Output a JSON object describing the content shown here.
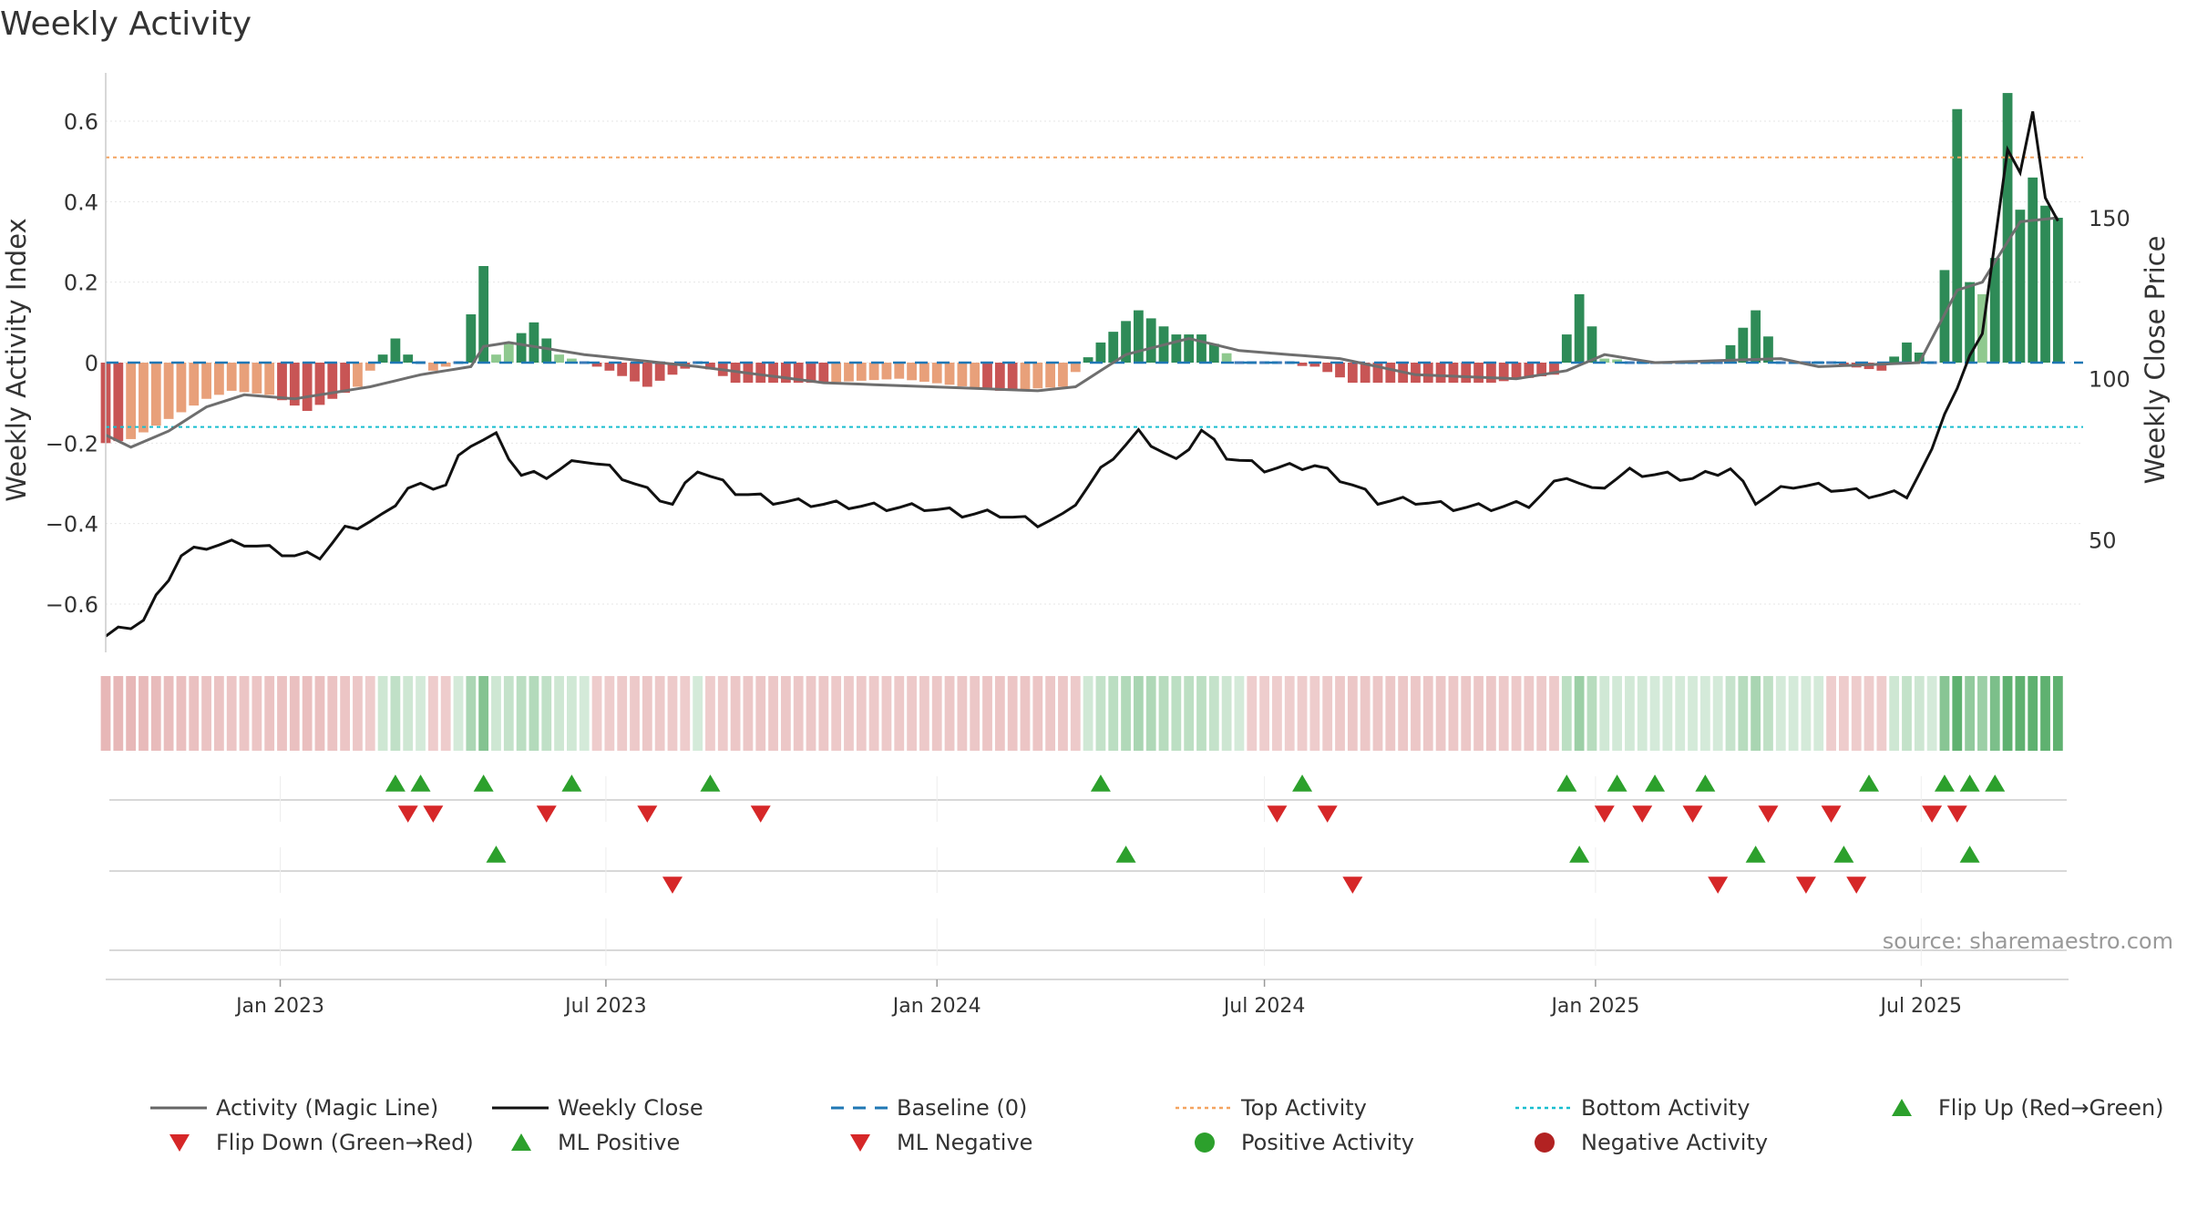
{
  "chart_data": {
    "type": "bar",
    "title": "Weekly Activity",
    "ylabel_left": "Weekly Activity Index",
    "ylabel_right": "Weekly Close Price",
    "source": "source: sharemaestro.com",
    "left_axis": {
      "ylim": [
        -0.72,
        0.72
      ],
      "ticks": [
        -0.6,
        -0.4,
        -0.2,
        0,
        0.2,
        0.4,
        0.6
      ],
      "tick_labels": [
        "−0.6",
        "−0.4",
        "−0.2",
        "0",
        "0.2",
        "0.4",
        "0.6"
      ]
    },
    "right_axis": {
      "ylim": [
        15,
        195
      ],
      "ticks": [
        50,
        100,
        150
      ],
      "tick_labels": [
        "50",
        "100",
        "150"
      ]
    },
    "x_start": "2022-09-26",
    "x_end": "2025-09-29",
    "date_ticks": [
      {
        "date": "2023-01-01",
        "label": "Jan 2023"
      },
      {
        "date": "2023-07-01",
        "label": "Jul 2023"
      },
      {
        "date": "2024-01-01",
        "label": "Jan 2024"
      },
      {
        "date": "2024-07-01",
        "label": "Jul 2024"
      },
      {
        "date": "2025-01-01",
        "label": "Jan 2025"
      },
      {
        "date": "2025-07-01",
        "label": "Jul 2025"
      }
    ],
    "top_activity": 0.51,
    "bottom_activity": -0.16,
    "weekly_activity_knots": [
      [
        "2022-09-26",
        -0.2
      ],
      [
        "2022-10-10",
        -0.19
      ],
      [
        "2022-10-31",
        -0.14
      ],
      [
        "2022-11-21",
        -0.09
      ],
      [
        "2022-12-05",
        -0.07
      ],
      [
        "2022-12-26",
        -0.08
      ],
      [
        "2023-01-16",
        -0.12
      ],
      [
        "2023-02-13",
        -0.06
      ],
      [
        "2023-03-06",
        0.06
      ],
      [
        "2023-03-13",
        0.02
      ],
      [
        "2023-03-27",
        -0.02
      ],
      [
        "2023-04-10",
        0.0
      ],
      [
        "2023-04-24",
        0.24
      ],
      [
        "2023-05-01",
        0.02
      ],
      [
        "2023-05-22",
        0.1
      ],
      [
        "2023-06-05",
        0.02
      ],
      [
        "2023-06-19",
        0.0
      ],
      [
        "2023-07-03",
        -0.02
      ],
      [
        "2023-07-24",
        -0.06
      ],
      [
        "2023-08-21",
        0.0
      ],
      [
        "2023-09-11",
        -0.05
      ],
      [
        "2023-10-30",
        -0.05
      ],
      [
        "2023-12-11",
        -0.04
      ],
      [
        "2024-02-05",
        -0.07
      ],
      [
        "2024-03-11",
        -0.06
      ],
      [
        "2024-04-01",
        0.05
      ],
      [
        "2024-04-22",
        0.13
      ],
      [
        "2024-05-13",
        0.07
      ],
      [
        "2024-05-27",
        0.07
      ],
      [
        "2024-06-17",
        0.0
      ],
      [
        "2024-07-29",
        -0.01
      ],
      [
        "2024-08-19",
        -0.05
      ],
      [
        "2024-09-16",
        -0.05
      ],
      [
        "2024-11-04",
        -0.05
      ],
      [
        "2024-12-09",
        -0.03
      ],
      [
        "2024-12-23",
        0.17
      ],
      [
        "2025-01-06",
        0.01
      ],
      [
        "2025-02-10",
        0.0
      ],
      [
        "2025-03-10",
        0.0
      ],
      [
        "2025-03-31",
        0.13
      ],
      [
        "2025-04-14",
        0.0
      ],
      [
        "2025-05-05",
        0.0
      ],
      [
        "2025-06-09",
        -0.02
      ],
      [
        "2025-06-23",
        0.05
      ],
      [
        "2025-07-07",
        0.0
      ],
      [
        "2025-07-14",
        0.23
      ],
      [
        "2025-07-21",
        0.63
      ],
      [
        "2025-07-28",
        0.2
      ],
      [
        "2025-08-04",
        0.17
      ],
      [
        "2025-08-11",
        0.26
      ],
      [
        "2025-08-18",
        0.67
      ],
      [
        "2025-08-25",
        0.38
      ],
      [
        "2025-09-01",
        0.46
      ],
      [
        "2025-09-08",
        0.39
      ],
      [
        "2025-09-15",
        0.36
      ]
    ],
    "magic_line_knots": [
      [
        "2022-09-26",
        -0.18
      ],
      [
        "2022-10-10",
        -0.21
      ],
      [
        "2022-10-31",
        -0.17
      ],
      [
        "2022-11-21",
        -0.11
      ],
      [
        "2022-12-12",
        -0.08
      ],
      [
        "2023-01-09",
        -0.09
      ],
      [
        "2023-02-20",
        -0.06
      ],
      [
        "2023-03-20",
        -0.03
      ],
      [
        "2023-04-17",
        -0.01
      ],
      [
        "2023-04-24",
        0.04
      ],
      [
        "2023-05-08",
        0.05
      ],
      [
        "2023-06-19",
        0.02
      ],
      [
        "2023-08-21",
        -0.01
      ],
      [
        "2023-10-30",
        -0.05
      ],
      [
        "2024-02-26",
        -0.07
      ],
      [
        "2024-03-18",
        -0.06
      ],
      [
        "2024-04-15",
        0.02
      ],
      [
        "2024-05-20",
        0.06
      ],
      [
        "2024-06-17",
        0.03
      ],
      [
        "2024-08-12",
        0.01
      ],
      [
        "2024-09-23",
        -0.03
      ],
      [
        "2024-11-18",
        -0.04
      ],
      [
        "2024-12-16",
        -0.02
      ],
      [
        "2025-01-06",
        0.02
      ],
      [
        "2025-02-03",
        0.0
      ],
      [
        "2025-04-14",
        0.01
      ],
      [
        "2025-05-05",
        -0.01
      ],
      [
        "2025-06-30",
        0.0
      ],
      [
        "2025-07-21",
        0.18
      ],
      [
        "2025-08-04",
        0.2
      ],
      [
        "2025-08-25",
        0.35
      ],
      [
        "2025-09-15",
        0.36
      ]
    ],
    "weekly_close_knots": [
      [
        "2022-09-26",
        20
      ],
      [
        "2022-10-17",
        25
      ],
      [
        "2022-11-07",
        45
      ],
      [
        "2022-11-21",
        48
      ],
      [
        "2022-12-12",
        49
      ],
      [
        "2023-01-09",
        45
      ],
      [
        "2023-01-23",
        45
      ],
      [
        "2023-02-06",
        53
      ],
      [
        "2023-02-27",
        57
      ],
      [
        "2023-03-13",
        66
      ],
      [
        "2023-04-03",
        67
      ],
      [
        "2023-04-10",
        75
      ],
      [
        "2023-04-17",
        80
      ],
      [
        "2023-05-01",
        82
      ],
      [
        "2023-05-15",
        70
      ],
      [
        "2023-05-29",
        70
      ],
      [
        "2023-06-19",
        75
      ],
      [
        "2023-07-03",
        72
      ],
      [
        "2023-07-24",
        65
      ],
      [
        "2023-08-07",
        61
      ],
      [
        "2023-08-21",
        72
      ],
      [
        "2023-09-11",
        65
      ],
      [
        "2023-10-02",
        62
      ],
      [
        "2023-10-30",
        61
      ],
      [
        "2023-12-04",
        60
      ],
      [
        "2023-12-25",
        60
      ],
      [
        "2024-01-15",
        58
      ],
      [
        "2024-02-05",
        58
      ],
      [
        "2024-02-26",
        55
      ],
      [
        "2024-03-11",
        57
      ],
      [
        "2024-04-08",
        76
      ],
      [
        "2024-04-22",
        83
      ],
      [
        "2024-05-13",
        74
      ],
      [
        "2024-05-27",
        84
      ],
      [
        "2024-06-10",
        76
      ],
      [
        "2024-07-01",
        72
      ],
      [
        "2024-07-29",
        73
      ],
      [
        "2024-08-19",
        67
      ],
      [
        "2024-09-02",
        62
      ],
      [
        "2024-09-23",
        62
      ],
      [
        "2024-10-14",
        60
      ],
      [
        "2024-11-04",
        60
      ],
      [
        "2024-11-25",
        61
      ],
      [
        "2024-12-16",
        70
      ],
      [
        "2024-12-30",
        65
      ],
      [
        "2025-01-20",
        71
      ],
      [
        "2025-02-24",
        69
      ],
      [
        "2025-03-17",
        72
      ],
      [
        "2025-03-31",
        62
      ],
      [
        "2025-04-21",
        67
      ],
      [
        "2025-05-12",
        66
      ],
      [
        "2025-06-02",
        64
      ],
      [
        "2025-06-23",
        64
      ],
      [
        "2025-07-07",
        77
      ],
      [
        "2025-07-14",
        90
      ],
      [
        "2025-07-21",
        97
      ],
      [
        "2025-08-04",
        115
      ],
      [
        "2025-08-18",
        170
      ],
      [
        "2025-08-25",
        165
      ],
      [
        "2025-09-01",
        183
      ],
      [
        "2025-09-08",
        155
      ],
      [
        "2025-09-15",
        150
      ]
    ],
    "signal_rows": [
      {
        "name": "Flip Up (Red→Green)",
        "marker": "triangle-up",
        "color": "#2ca02c",
        "dates": [
          "2023-03-06",
          "2023-03-20",
          "2023-04-24",
          "2023-06-12",
          "2023-08-28",
          "2024-04-01",
          "2024-07-22",
          "2024-12-16",
          "2025-01-13",
          "2025-02-03",
          "2025-03-03",
          "2025-06-02",
          "2025-07-14",
          "2025-07-28",
          "2025-08-11"
        ]
      },
      {
        "name": "Flip Down (Green→Red)",
        "marker": "triangle-down",
        "color": "#d62728",
        "dates": [
          "2023-03-13",
          "2023-03-27",
          "2023-05-29",
          "2023-07-24",
          "2023-09-25",
          "2024-07-08",
          "2024-08-05",
          "2025-01-06",
          "2025-01-27",
          "2025-02-24",
          "2025-04-07",
          "2025-05-12",
          "2025-07-07",
          "2025-07-21"
        ]
      },
      {
        "name": "ML Positive",
        "marker": "triangle-up",
        "color": "#2ca02c",
        "dates": [
          "2023-05-01",
          "2024-04-15",
          "2024-12-23",
          "2025-03-31",
          "2025-05-19",
          "2025-07-28"
        ]
      },
      {
        "name": "ML Negative",
        "marker": "triangle-down",
        "color": "#d62728",
        "dates": [
          "2023-08-07",
          "2024-08-19",
          "2025-03-10",
          "2025-04-28",
          "2025-05-26"
        ]
      }
    ],
    "legend": [
      {
        "label": "Activity (Magic Line)",
        "type": "line",
        "color": "#666666"
      },
      {
        "label": "Weekly Close",
        "type": "line",
        "color": "#111111"
      },
      {
        "label": "Baseline (0)",
        "type": "dashed",
        "color": "#1f77b4"
      },
      {
        "label": "Top Activity",
        "type": "dotted",
        "color": "#f4a460"
      },
      {
        "label": "Bottom Activity",
        "type": "dotted",
        "color": "#17becf"
      },
      {
        "label": "Flip Up (Red→Green)",
        "type": "triangle-up",
        "color": "#2ca02c"
      },
      {
        "label": "Flip Down (Green→Red)",
        "type": "triangle-down",
        "color": "#d62728"
      },
      {
        "label": "ML Positive",
        "type": "triangle-up",
        "color": "#2ca02c"
      },
      {
        "label": "ML Negative",
        "type": "triangle-down",
        "color": "#d62728"
      },
      {
        "label": "Positive Activity",
        "type": "dot",
        "color": "#2ca02c"
      },
      {
        "label": "Negative Activity",
        "type": "dot",
        "color": "#b22222"
      }
    ],
    "grid": true,
    "legend_placement": "bottom"
  }
}
